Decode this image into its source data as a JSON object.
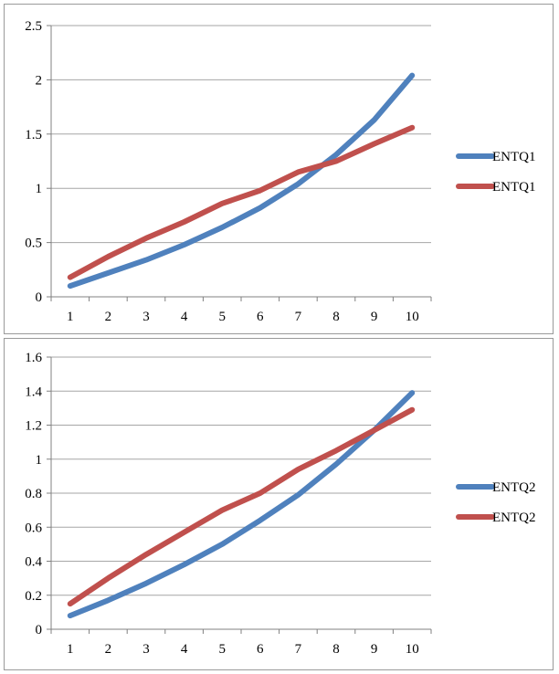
{
  "chart_data": [
    {
      "type": "line",
      "categories": [
        "1",
        "2",
        "3",
        "4",
        "5",
        "6",
        "7",
        "8",
        "9",
        "10"
      ],
      "ylim": [
        0,
        2.5
      ],
      "yticks": [
        "0",
        "0.5",
        "1",
        "1.5",
        "2",
        "2.5"
      ],
      "ytick_values": [
        0,
        0.5,
        1,
        1.5,
        2,
        2.5
      ],
      "grid": true,
      "legend_position": "right",
      "series": [
        {
          "name": "ENTQ1",
          "color": "#4f81bd",
          "values": [
            0.1,
            0.22,
            0.34,
            0.48,
            0.64,
            0.82,
            1.04,
            1.31,
            1.63,
            2.04
          ]
        },
        {
          "name": "ENTQ1",
          "color": "#c0504d",
          "values": [
            0.18,
            0.37,
            0.54,
            0.69,
            0.86,
            0.98,
            1.15,
            1.25,
            1.41,
            1.56
          ]
        }
      ]
    },
    {
      "type": "line",
      "categories": [
        "1",
        "2",
        "3",
        "4",
        "5",
        "6",
        "7",
        "8",
        "9",
        "10"
      ],
      "ylim": [
        0,
        1.6
      ],
      "yticks": [
        "0",
        "0.2",
        "0.4",
        "0.6",
        "0.8",
        "1",
        "1.2",
        "1.4",
        "1.6"
      ],
      "ytick_values": [
        0,
        0.2,
        0.4,
        0.6,
        0.8,
        1,
        1.2,
        1.4,
        1.6
      ],
      "grid": true,
      "legend_position": "right",
      "series": [
        {
          "name": "ENTQ2",
          "color": "#4f81bd",
          "values": [
            0.08,
            0.17,
            0.27,
            0.38,
            0.5,
            0.64,
            0.79,
            0.97,
            1.17,
            1.39
          ]
        },
        {
          "name": "ENTQ2",
          "color": "#c0504d",
          "values": [
            0.15,
            0.3,
            0.44,
            0.57,
            0.7,
            0.8,
            0.94,
            1.05,
            1.17,
            1.29
          ]
        }
      ]
    }
  ]
}
